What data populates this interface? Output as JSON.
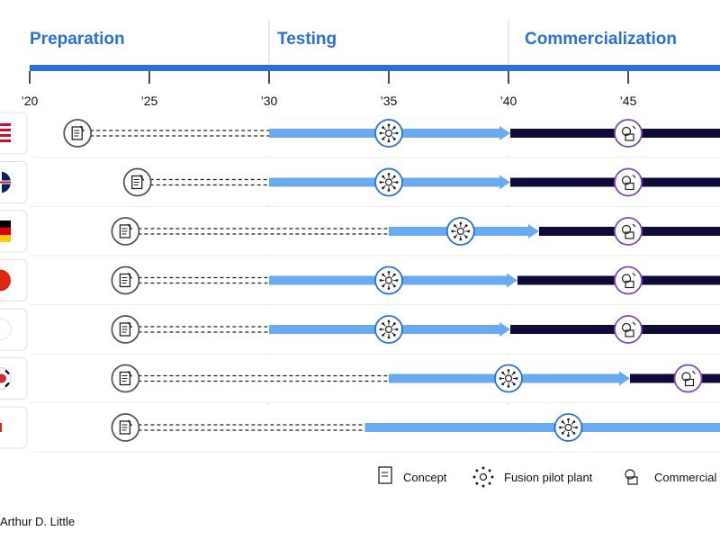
{
  "phases": [
    "Preparation",
    "Testing",
    "Commercialization"
  ],
  "legend": {
    "concept": "Concept",
    "pilot": "Fusion pilot plant",
    "commercial": "Commercial"
  },
  "source": "Arthur D. Little",
  "colors": {
    "phase_text": "#2a70d8",
    "timeline_bar": "#2a70d8",
    "testing_arrow": "#6aaaf0",
    "commercial_bar": "#0e0a3a",
    "pilot_ring": "#2a70d8",
    "commercial_ring": "#7a4db8",
    "concept_ring": "#555555"
  },
  "chart_data": {
    "type": "timeline",
    "title": "",
    "x_range": [
      2020,
      2050
    ],
    "phase_boundaries": [
      2030,
      2040
    ],
    "tick_labels": [
      "’20",
      "’25",
      "’30",
      "’35",
      "’40",
      "’45"
    ],
    "tick_years": [
      2020,
      2025,
      2030,
      2035,
      2040,
      2045
    ],
    "rows": [
      {
        "flag": "us-flag-icon",
        "concept": 2022.0,
        "test_start": 2030,
        "pilot": 2035,
        "test_end": 2040,
        "commercial": 2045,
        "comm_start": 2040
      },
      {
        "flag": "uk-flag-icon",
        "concept": 2024.5,
        "test_start": 2030,
        "pilot": 2035,
        "test_end": 2040,
        "commercial": 2045,
        "comm_start": 2040
      },
      {
        "flag": "germany-flag-icon",
        "concept": 2024.0,
        "test_start": 2035,
        "pilot": 2038,
        "test_end": 2041.2,
        "commercial": 2045,
        "comm_start": 2041.2
      },
      {
        "flag": "china-flag-icon",
        "concept": 2024.0,
        "test_start": 2030,
        "pilot": 2035,
        "test_end": 2040.3,
        "commercial": 2045,
        "comm_start": 2040.3
      },
      {
        "flag": "japan-flag-icon",
        "concept": 2024.0,
        "test_start": 2030,
        "pilot": 2035,
        "test_end": 2040,
        "commercial": 2045,
        "comm_start": 2040
      },
      {
        "flag": "korea-flag-icon",
        "concept": 2024.0,
        "test_start": 2035,
        "pilot": 2040,
        "test_end": 2045,
        "commercial": 2047.5,
        "comm_start": 2045
      },
      {
        "flag": "canada-flag-icon",
        "concept": 2024.0,
        "test_start": 2034,
        "pilot": 2042.5,
        "test_end": 2050,
        "commercial": null,
        "comm_start": null
      }
    ]
  }
}
